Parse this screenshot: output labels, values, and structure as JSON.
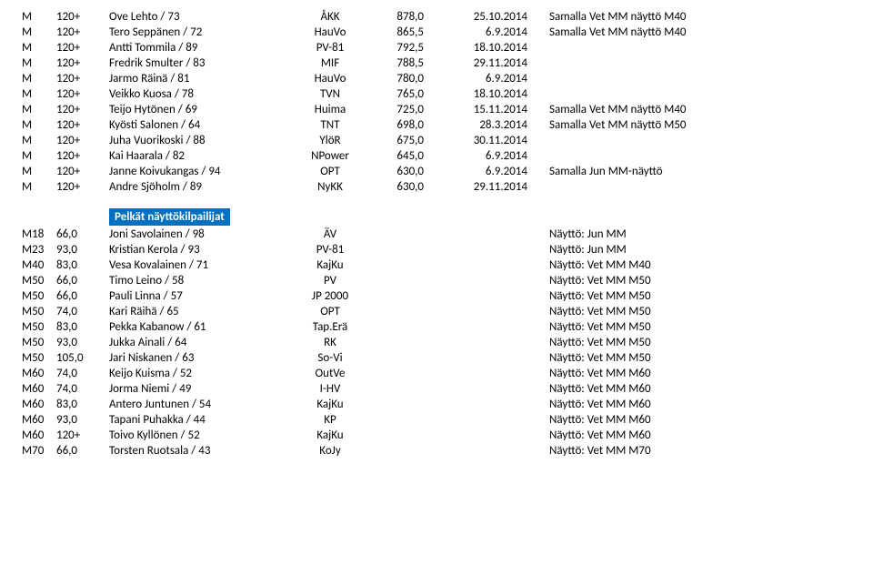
{
  "section1": {
    "rows": [
      {
        "m": "M",
        "wt": "120+",
        "name": "Ove Lehto / 73",
        "club": "ÅKK",
        "score": "878,0",
        "date": "25.10.2014",
        "note": "Samalla Vet MM näyttö M40"
      },
      {
        "m": "M",
        "wt": "120+",
        "name": "Tero Seppänen / 72",
        "club": "HauVo",
        "score": "865,5",
        "date": "6.9.2014",
        "note": "Samalla Vet MM näyttö M40"
      },
      {
        "m": "M",
        "wt": "120+",
        "name": "Antti Tommila / 89",
        "club": "PV-81",
        "score": "792,5",
        "date": "18.10.2014",
        "note": ""
      },
      {
        "m": "M",
        "wt": "120+",
        "name": "Fredrik Smulter / 83",
        "club": "MIF",
        "score": "788,5",
        "date": "29.11.2014",
        "note": ""
      },
      {
        "m": "M",
        "wt": "120+",
        "name": "Jarmo Räinä / 81",
        "club": "HauVo",
        "score": "780,0",
        "date": "6.9.2014",
        "note": ""
      },
      {
        "m": "M",
        "wt": "120+",
        "name": "Veikko Kuosa / 78",
        "club": "TVN",
        "score": "765,0",
        "date": "18.10.2014",
        "note": ""
      },
      {
        "m": "M",
        "wt": "120+",
        "name": "Teijo Hytönen / 69",
        "club": "Huima",
        "score": "725,0",
        "date": "15.11.2014",
        "note": "Samalla Vet MM näyttö M40"
      },
      {
        "m": "M",
        "wt": "120+",
        "name": "Kyösti Salonen / 64",
        "club": "TNT",
        "score": "698,0",
        "date": "28.3.2014",
        "note": "Samalla Vet MM näyttö M50"
      },
      {
        "m": "M",
        "wt": "120+",
        "name": "Juha Vuorikoski / 88",
        "club": "YlöR",
        "score": "675,0",
        "date": "30.11.2014",
        "note": ""
      },
      {
        "m": "M",
        "wt": "120+",
        "name": "Kai Haarala / 82",
        "club": "NPower",
        "score": "645,0",
        "date": "6.9.2014",
        "note": ""
      },
      {
        "m": "M",
        "wt": "120+",
        "name": "Janne Koivukangas / 94",
        "club": "OPT",
        "score": "630,0",
        "date": "6.9.2014",
        "note": "Samalla Jun MM-näyttö"
      },
      {
        "m": "M",
        "wt": "120+",
        "name": "Andre Sjöholm / 89",
        "club": "NyKK",
        "score": "630,0",
        "date": "29.11.2014",
        "note": ""
      }
    ]
  },
  "section2": {
    "header": "Pelkät näyttökilpailijat",
    "rows": [
      {
        "m": "M18",
        "wt": "66,0",
        "name": "Joni Savolainen / 98",
        "club": "ÄV",
        "note": "Näyttö: Jun MM"
      },
      {
        "m": "M23",
        "wt": "93,0",
        "name": "Kristian Kerola / 93",
        "club": "PV-81",
        "note": "Näyttö: Jun MM"
      },
      {
        "m": "M40",
        "wt": "83,0",
        "name": "Vesa Kovalainen / 71",
        "club": "KajKu",
        "note": "Näyttö: Vet MM M40"
      },
      {
        "m": "M50",
        "wt": "66,0",
        "name": "Timo Leino / 58",
        "club": "PV",
        "note": "Näyttö: Vet MM M50"
      },
      {
        "m": "M50",
        "wt": "66,0",
        "name": "Pauli Linna / 57",
        "club": "JP 2000",
        "note": "Näyttö: Vet MM M50"
      },
      {
        "m": "M50",
        "wt": "74,0",
        "name": "Kari Räihä / 65",
        "club": "OPT",
        "note": "Näyttö: Vet MM M50"
      },
      {
        "m": "M50",
        "wt": "83,0",
        "name": "Pekka Kabanow / 61",
        "club": "Tap.Erä",
        "note": "Näyttö: Vet MM M50"
      },
      {
        "m": "M50",
        "wt": "93,0",
        "name": "Jukka Ainali / 64",
        "club": "RK",
        "note": "Näyttö: Vet MM M50"
      },
      {
        "m": "M50",
        "wt": "105,0",
        "name": "Jari Niskanen / 63",
        "club": "So-Vi",
        "note": "Näyttö: Vet MM M50"
      },
      {
        "m": "M60",
        "wt": "74,0",
        "name": "Keijo Kuisma / 52",
        "club": "OutVe",
        "note": "Näyttö: Vet MM M60"
      },
      {
        "m": "M60",
        "wt": "74,0",
        "name": "Jorma Niemi / 49",
        "club": "I-HV",
        "note": "Näyttö: Vet MM M60"
      },
      {
        "m": "M60",
        "wt": "83,0",
        "name": "Antero Juntunen / 54",
        "club": "KajKu",
        "note": "Näyttö: Vet MM M60"
      },
      {
        "m": "M60",
        "wt": "93,0",
        "name": "Tapani Puhakka / 44",
        "club": "KP",
        "note": "Näyttö: Vet MM M60"
      },
      {
        "m": "M60",
        "wt": "120+",
        "name": "Toivo Kyllönen / 52",
        "club": "KajKu",
        "note": "Näyttö: Vet MM M60"
      },
      {
        "m": "M70",
        "wt": "66,0",
        "name": "Torsten Ruotsala / 43",
        "club": "KoJy",
        "note": "Näyttö: Vet MM M70"
      }
    ]
  }
}
